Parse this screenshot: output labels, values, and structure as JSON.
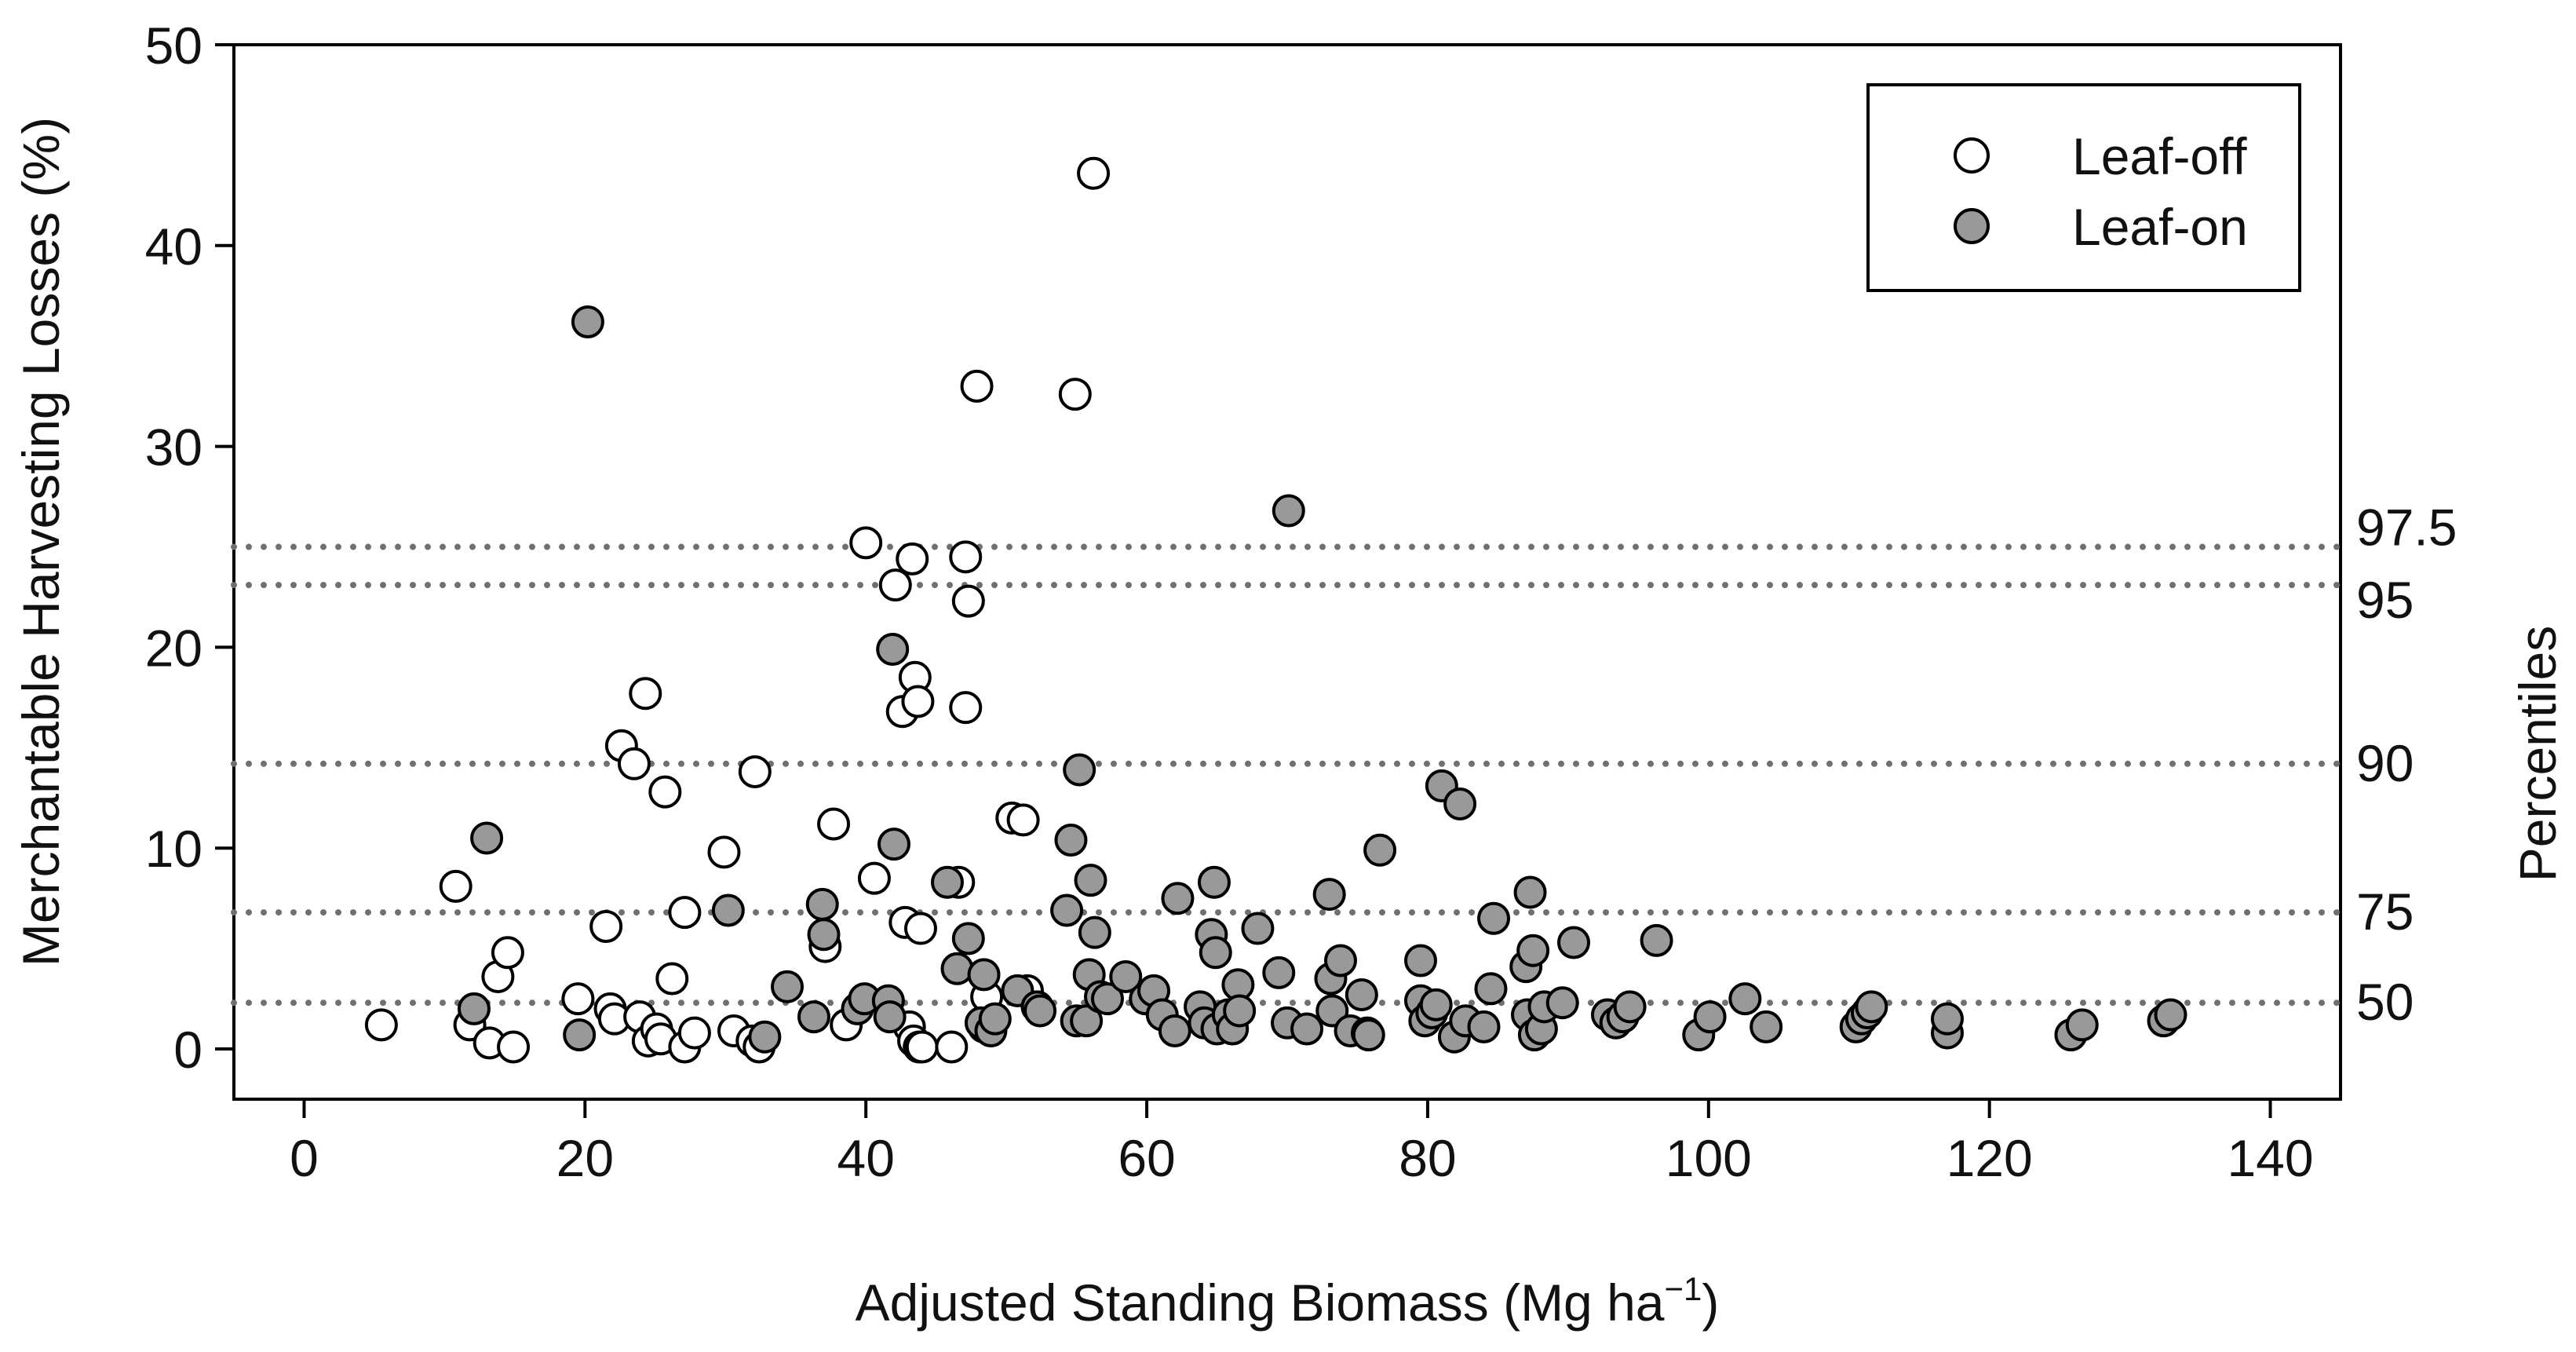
{
  "chart_data": {
    "type": "scatter",
    "title": "",
    "xlabel": "Adjusted Standing Biomass (Mg ha",
    "xlabel_sup": "−1",
    "xlabel_suffix": ")",
    "ylabel": "Merchantable Harvesting Losses (%)",
    "xlim": [
      -5,
      145
    ],
    "ylim": [
      -2.5,
      50
    ],
    "xticks": [
      "0",
      "20",
      "40",
      "60",
      "80",
      "100",
      "120",
      "140"
    ],
    "yticks": [
      "0",
      "10",
      "20",
      "30",
      "40",
      "50"
    ],
    "legend_position": "top-right",
    "colors": {
      "leaf_off": "#ffffff",
      "leaf_on": "#999999",
      "edge": "#000000",
      "percentile_line": "#707070"
    },
    "percentiles": {
      "title": "Percentiles",
      "lines": [
        {
          "label": "97.5",
          "value": 25.0
        },
        {
          "label": "95",
          "value": 23.1
        },
        {
          "label": "90",
          "value": 14.2
        },
        {
          "label": "75",
          "value": 6.8
        },
        {
          "label": "50",
          "value": 2.3
        }
      ]
    },
    "series": [
      {
        "name": "Leaf-off",
        "points": [
          [
            5.5,
            1.2
          ],
          [
            10.8,
            8.1
          ],
          [
            11.8,
            1.2
          ],
          [
            13.2,
            0.3
          ],
          [
            13.8,
            3.6
          ],
          [
            14.5,
            4.8
          ],
          [
            14.9,
            0.1
          ],
          [
            19.5,
            2.5
          ],
          [
            21.5,
            6.1
          ],
          [
            21.8,
            2.0
          ],
          [
            22.1,
            1.5
          ],
          [
            22.6,
            15.1
          ],
          [
            23.5,
            14.2
          ],
          [
            23.9,
            1.6
          ],
          [
            24.3,
            17.7
          ],
          [
            24.5,
            0.4
          ],
          [
            25.1,
            1.0
          ],
          [
            25.4,
            0.5
          ],
          [
            25.7,
            12.8
          ],
          [
            26.2,
            3.5
          ],
          [
            27.1,
            0.1
          ],
          [
            27.1,
            6.8
          ],
          [
            27.8,
            0.8
          ],
          [
            29.9,
            9.8
          ],
          [
            30.6,
            0.9
          ],
          [
            31.9,
            0.4
          ],
          [
            32.1,
            13.8
          ],
          [
            32.4,
            0.1
          ],
          [
            37.1,
            5.1
          ],
          [
            37.7,
            11.2
          ],
          [
            38.6,
            1.2
          ],
          [
            40.0,
            25.2
          ],
          [
            40.6,
            8.5
          ],
          [
            42.1,
            23.1
          ],
          [
            42.6,
            16.8
          ],
          [
            42.8,
            6.3
          ],
          [
            43.1,
            1.1
          ],
          [
            43.3,
            24.4
          ],
          [
            43.4,
            0.4
          ],
          [
            43.5,
            18.5
          ],
          [
            43.7,
            17.3
          ],
          [
            43.8,
            0.1
          ],
          [
            43.9,
            6.0
          ],
          [
            44.0,
            0.1
          ],
          [
            46.1,
            0.1
          ],
          [
            46.6,
            8.3
          ],
          [
            47.1,
            17.0
          ],
          [
            47.1,
            24.5
          ],
          [
            47.3,
            22.3
          ],
          [
            47.9,
            33.0
          ],
          [
            48.4,
            1.1
          ],
          [
            48.6,
            2.6
          ],
          [
            50.4,
            11.5
          ],
          [
            51.2,
            11.4
          ],
          [
            51.5,
            2.9
          ],
          [
            54.9,
            32.6
          ],
          [
            56.2,
            43.6
          ]
        ]
      },
      {
        "name": "Leaf-on",
        "points": [
          [
            12.1,
            2.0
          ],
          [
            13.0,
            10.5
          ],
          [
            19.6,
            0.7
          ],
          [
            20.2,
            36.2
          ],
          [
            30.2,
            6.9
          ],
          [
            32.8,
            0.6
          ],
          [
            34.4,
            3.1
          ],
          [
            36.3,
            1.6
          ],
          [
            36.9,
            7.2
          ],
          [
            37.0,
            5.7
          ],
          [
            39.4,
            2.0
          ],
          [
            39.9,
            2.5
          ],
          [
            41.6,
            2.4
          ],
          [
            41.7,
            1.6
          ],
          [
            41.9,
            19.9
          ],
          [
            42.0,
            10.2
          ],
          [
            45.8,
            8.3
          ],
          [
            46.5,
            4.0
          ],
          [
            47.3,
            5.5
          ],
          [
            48.2,
            1.3
          ],
          [
            48.4,
            3.7
          ],
          [
            48.9,
            0.9
          ],
          [
            49.2,
            1.5
          ],
          [
            50.8,
            2.9
          ],
          [
            52.2,
            2.1
          ],
          [
            52.4,
            1.9
          ],
          [
            54.3,
            6.9
          ],
          [
            54.6,
            10.4
          ],
          [
            55.0,
            1.4
          ],
          [
            55.2,
            13.9
          ],
          [
            55.7,
            1.4
          ],
          [
            55.9,
            3.7
          ],
          [
            56.0,
            8.4
          ],
          [
            56.3,
            5.8
          ],
          [
            56.7,
            2.6
          ],
          [
            57.2,
            2.5
          ],
          [
            58.5,
            3.6
          ],
          [
            59.9,
            2.5
          ],
          [
            60.5,
            2.9
          ],
          [
            61.1,
            1.7
          ],
          [
            62.0,
            0.9
          ],
          [
            62.2,
            7.5
          ],
          [
            63.8,
            2.1
          ],
          [
            64.1,
            1.3
          ],
          [
            64.6,
            5.7
          ],
          [
            64.8,
            8.3
          ],
          [
            64.9,
            4.8
          ],
          [
            65.0,
            1.0
          ],
          [
            65.8,
            1.7
          ],
          [
            66.1,
            1.0
          ],
          [
            66.5,
            3.2
          ],
          [
            66.6,
            1.9
          ],
          [
            67.9,
            6.0
          ],
          [
            69.4,
            3.8
          ],
          [
            70.0,
            1.3
          ],
          [
            70.1,
            26.8
          ],
          [
            71.4,
            1.0
          ],
          [
            73.0,
            7.7
          ],
          [
            73.1,
            3.5
          ],
          [
            73.2,
            1.9
          ],
          [
            73.8,
            4.4
          ],
          [
            74.5,
            0.9
          ],
          [
            75.3,
            2.7
          ],
          [
            75.7,
            0.8
          ],
          [
            75.8,
            0.7
          ],
          [
            76.6,
            9.9
          ],
          [
            79.5,
            4.4
          ],
          [
            79.5,
            2.4
          ],
          [
            79.8,
            1.4
          ],
          [
            80.3,
            1.8
          ],
          [
            80.6,
            2.2
          ],
          [
            81.0,
            13.1
          ],
          [
            81.9,
            0.6
          ],
          [
            82.3,
            12.2
          ],
          [
            82.7,
            1.4
          ],
          [
            84.0,
            1.1
          ],
          [
            84.5,
            3.0
          ],
          [
            84.7,
            6.5
          ],
          [
            87.0,
            4.1
          ],
          [
            87.1,
            1.7
          ],
          [
            87.3,
            7.8
          ],
          [
            87.5,
            4.9
          ],
          [
            87.6,
            0.7
          ],
          [
            88.1,
            1.0
          ],
          [
            88.3,
            2.1
          ],
          [
            89.6,
            2.3
          ],
          [
            90.4,
            5.3
          ],
          [
            92.8,
            1.7
          ],
          [
            93.4,
            1.3
          ],
          [
            93.9,
            1.6
          ],
          [
            94.4,
            2.1
          ],
          [
            96.3,
            5.4
          ],
          [
            99.3,
            0.7
          ],
          [
            100.1,
            1.6
          ],
          [
            102.6,
            2.5
          ],
          [
            104.1,
            1.1
          ],
          [
            110.5,
            1.1
          ],
          [
            110.9,
            1.5
          ],
          [
            111.3,
            1.8
          ],
          [
            111.6,
            2.1
          ],
          [
            117.0,
            0.8
          ],
          [
            117.0,
            1.5
          ],
          [
            125.8,
            0.7
          ],
          [
            126.6,
            1.2
          ],
          [
            132.4,
            1.4
          ],
          [
            132.9,
            1.7
          ]
        ]
      }
    ]
  }
}
